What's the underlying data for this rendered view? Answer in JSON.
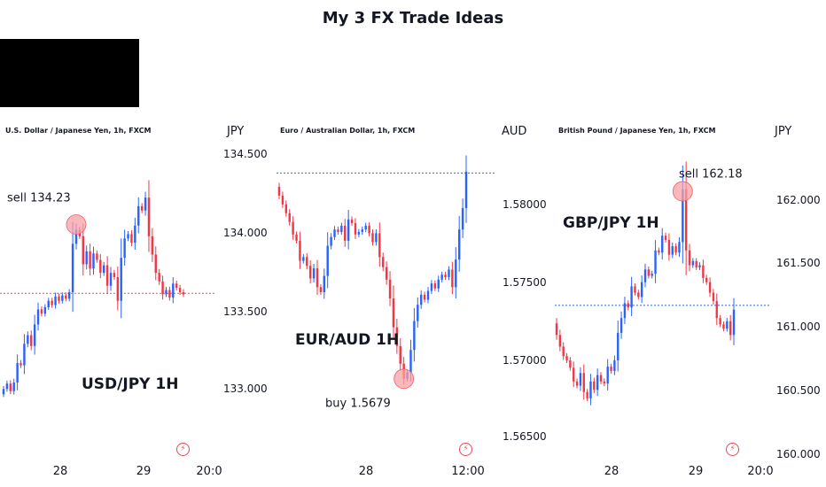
{
  "title": "My 3 FX Trade Ideas",
  "colors": {
    "up": "#2962ff",
    "down": "#f23645",
    "red_line": "#e05a5a",
    "blue_line": "#2962ff",
    "marker": "#f7a0a6"
  },
  "chart_data": [
    {
      "type": "candlestick",
      "symbol": "U.S. Dollar / Japanese Yen, 1h, FXCM",
      "pair_label": "USD/JPY 1H",
      "currency": "JPY",
      "y_ticks": [
        "134.500",
        "134.000",
        "133.500",
        "133.000"
      ],
      "ylim": [
        132.2,
        135.0
      ],
      "x_ticks": [
        "28",
        "29",
        "20:0"
      ],
      "x_tick_index": [
        19,
        52,
        74
      ],
      "level": 133.59,
      "level_color": "red",
      "marker": {
        "index": 21,
        "price": 134.23,
        "label": "sell 134.23"
      },
      "closes": [
        132.7,
        132.75,
        132.68,
        132.76,
        132.94,
        132.92,
        133.12,
        133.2,
        133.1,
        133.3,
        133.44,
        133.4,
        133.46,
        133.52,
        133.48,
        133.56,
        133.52,
        133.57,
        133.54,
        133.6,
        134.05,
        134.18,
        134.12,
        133.86,
        133.98,
        133.82,
        133.96,
        133.9,
        133.78,
        133.85,
        133.66,
        133.78,
        133.74,
        133.52,
        133.92,
        134.1,
        134.14,
        134.06,
        134.22,
        134.4,
        134.36,
        134.48,
        134.12,
        133.95,
        133.78,
        133.7,
        133.58,
        133.62,
        133.55,
        133.68,
        133.64,
        133.6,
        133.58
      ]
    },
    {
      "type": "candlestick",
      "symbol": "Euro / Australian Dollar, 1h, FXCM",
      "pair_label": "EUR/AUD 1H",
      "currency": "AUD",
      "y_ticks": [
        "1.58000",
        "1.57500",
        "1.57000",
        "1.56500"
      ],
      "ylim": [
        1.5628,
        1.5868
      ],
      "x_ticks": [
        "28",
        "12:00"
      ],
      "x_tick_index": [
        21,
        48
      ],
      "level": 1.5843,
      "level_color": "blue",
      "marker": {
        "index": 36,
        "price": 1.5679,
        "label": "buy 1.5679"
      },
      "closes": [
        1.5825,
        1.5818,
        1.5811,
        1.5804,
        1.5794,
        1.5789,
        1.5773,
        1.5776,
        1.5769,
        1.5759,
        1.5767,
        1.5752,
        1.5748,
        1.5761,
        1.5785,
        1.5792,
        1.5798,
        1.5796,
        1.5801,
        1.5789,
        1.5806,
        1.5803,
        1.5794,
        1.5796,
        1.5798,
        1.5801,
        1.5795,
        1.5788,
        1.5795,
        1.5776,
        1.5768,
        1.5758,
        1.5743,
        1.572,
        1.5705,
        1.5691,
        1.5679,
        1.5684,
        1.5702,
        1.5725,
        1.5738,
        1.5746,
        1.5742,
        1.5749,
        1.5755,
        1.5751,
        1.5758,
        1.5762,
        1.576,
        1.5766,
        1.5752,
        1.5774,
        1.5798,
        1.5815,
        1.5844
      ]
    },
    {
      "type": "candlestick",
      "symbol": "British Pound / Japanese Yen, 1h, FXCM",
      "pair_label": "GBP/JPY 1H",
      "currency": "JPY",
      "y_ticks": [
        "162.000",
        "161.500",
        "161.000",
        "160.500",
        "160.000"
      ],
      "ylim": [
        159.8,
        162.65
      ],
      "x_ticks": [
        "28",
        "29",
        "20:0"
      ],
      "x_tick_index": [
        19,
        48,
        68
      ],
      "level": 161.1,
      "level_color": "blue",
      "marker": {
        "index": 37,
        "price": 162.18,
        "label": "sell 162.18"
      },
      "closes": [
        160.82,
        160.71,
        160.62,
        160.58,
        160.51,
        160.38,
        160.34,
        160.46,
        160.28,
        160.22,
        160.38,
        160.3,
        160.44,
        160.38,
        160.36,
        160.52,
        160.48,
        160.58,
        160.84,
        160.98,
        161.12,
        161.08,
        161.28,
        161.22,
        161.18,
        161.32,
        161.44,
        161.38,
        161.4,
        161.62,
        161.6,
        161.76,
        161.72,
        161.58,
        161.66,
        161.6,
        161.7,
        162.2,
        161.62,
        161.48,
        161.52,
        161.46,
        161.48,
        161.36,
        161.32,
        161.22,
        161.14,
        160.98,
        160.92,
        160.88,
        160.95,
        160.82,
        161.06
      ]
    }
  ]
}
